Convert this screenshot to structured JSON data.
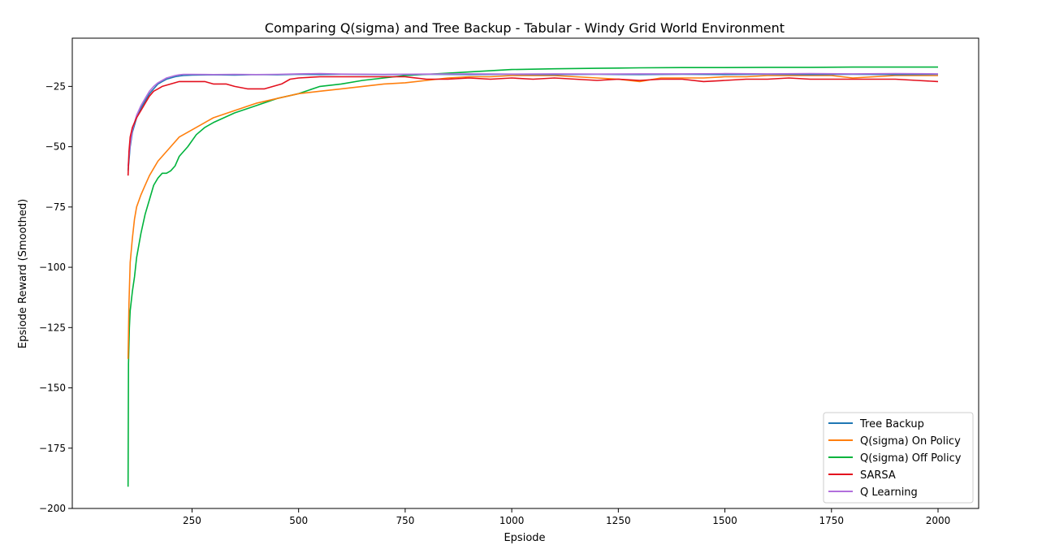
{
  "chart_data": {
    "type": "line",
    "title": "Comparing Q(sigma) and Tree Backup - Tabular - Windy Grid World Environment",
    "xlabel": "Epsiode",
    "ylabel": "Epsiode Reward (Smoothed)",
    "xlim": [
      0,
      2000
    ],
    "ylim": [
      -200,
      -5
    ],
    "xticks": [
      250,
      500,
      750,
      1000,
      1250,
      1500,
      1750,
      2000
    ],
    "yticks": [
      -200,
      -175,
      -150,
      -125,
      -100,
      -75,
      -50,
      -25
    ],
    "xtick_labels": [
      "250",
      "500",
      "750",
      "1000",
      "1250",
      "1500",
      "1750",
      "2000"
    ],
    "ytick_labels": [
      "−200",
      "−175",
      "−150",
      "−125",
      "−100",
      "−75",
      "−50",
      "−25"
    ],
    "grid": false,
    "legend_position": "bottom-right",
    "series": [
      {
        "name": "Tree Backup",
        "color": "#1f77b4",
        "x": [
          100,
          105,
          110,
          120,
          130,
          140,
          150,
          160,
          170,
          180,
          190,
          200,
          210,
          220,
          230,
          250,
          300,
          350,
          400,
          450,
          500,
          550,
          600,
          700,
          800,
          900,
          1000,
          1100,
          1200,
          1300,
          1400,
          1500,
          1600,
          1700,
          1800,
          1900,
          2000
        ],
        "y": [
          -60,
          -50,
          -44,
          -38,
          -34,
          -31,
          -28,
          -26,
          -24,
          -23,
          -22,
          -21.5,
          -21,
          -20.7,
          -20.5,
          -20.3,
          -20.2,
          -20.3,
          -20.1,
          -20.2,
          -20.0,
          -20.1,
          -20.0,
          -20.1,
          -20.0,
          -20.1,
          -20.0,
          -20.1,
          -20.0,
          -20.1,
          -20.0,
          -20.1,
          -20.0,
          -20.1,
          -20.0,
          -20.1,
          -20.0
        ]
      },
      {
        "name": "Q(sigma) On Policy",
        "color": "#ff7f0e",
        "x": [
          100,
          102,
          105,
          110,
          115,
          120,
          130,
          140,
          150,
          160,
          170,
          180,
          200,
          220,
          250,
          280,
          300,
          350,
          400,
          450,
          500,
          550,
          600,
          650,
          700,
          750,
          800,
          850,
          900,
          950,
          1000,
          1050,
          1100,
          1150,
          1200,
          1250,
          1300,
          1350,
          1400,
          1450,
          1500,
          1550,
          1600,
          1650,
          1700,
          1750,
          1800,
          1850,
          1900,
          1950,
          2000
        ],
        "y": [
          -138,
          -115,
          -98,
          -88,
          -80,
          -75,
          -70,
          -66,
          -62,
          -59,
          -56,
          -54,
          -50,
          -46,
          -43,
          -40,
          -38,
          -35,
          -32,
          -30,
          -28,
          -27,
          -26,
          -25,
          -24,
          -23.5,
          -22.5,
          -21.5,
          -21,
          -21,
          -20.5,
          -20.5,
          -20.5,
          -21,
          -21.5,
          -22,
          -23,
          -21.5,
          -21.5,
          -21.5,
          -21,
          -21,
          -20.5,
          -20.5,
          -20.5,
          -20.5,
          -21.5,
          -21,
          -20.5,
          -20.5,
          -20.5
        ]
      },
      {
        "name": "Q(sigma) Off Policy",
        "color": "#00b33c",
        "x": [
          100,
          101,
          103,
          105,
          110,
          115,
          120,
          130,
          140,
          150,
          160,
          170,
          180,
          190,
          200,
          210,
          220,
          240,
          260,
          280,
          300,
          350,
          400,
          450,
          500,
          550,
          600,
          650,
          700,
          750,
          800,
          850,
          900,
          950,
          1000,
          1100,
          1200,
          1300,
          1400,
          1500,
          1600,
          1700,
          1800,
          1900,
          2000
        ],
        "y": [
          -191,
          -140,
          -125,
          -118,
          -110,
          -104,
          -96,
          -86,
          -78,
          -72,
          -66,
          -63,
          -61,
          -61,
          -60,
          -58,
          -54,
          -50,
          -45,
          -42,
          -40,
          -36,
          -33,
          -30,
          -28,
          -25,
          -24,
          -22.5,
          -21.5,
          -20.5,
          -20,
          -19.5,
          -19,
          -18.5,
          -18,
          -17.7,
          -17.5,
          -17.3,
          -17.2,
          -17.2,
          -17.1,
          -17.1,
          -17.0,
          -17.0,
          -17.0
        ]
      },
      {
        "name": "SARSA",
        "color": "#e3101e",
        "x": [
          100,
          102,
          105,
          110,
          120,
          130,
          140,
          150,
          160,
          170,
          180,
          200,
          220,
          250,
          280,
          300,
          330,
          350,
          380,
          400,
          420,
          440,
          460,
          480,
          500,
          550,
          600,
          650,
          700,
          750,
          800,
          850,
          900,
          950,
          1000,
          1050,
          1100,
          1150,
          1200,
          1250,
          1300,
          1350,
          1400,
          1450,
          1500,
          1550,
          1600,
          1650,
          1700,
          1750,
          1800,
          1850,
          1900,
          1950,
          2000
        ],
        "y": [
          -62,
          -52,
          -46,
          -42,
          -38,
          -35,
          -32,
          -29,
          -27,
          -26,
          -25,
          -24,
          -23,
          -23,
          -23,
          -24,
          -24,
          -25,
          -26,
          -26,
          -26,
          -25,
          -24,
          -22,
          -21.5,
          -21,
          -21,
          -21,
          -21,
          -21,
          -22,
          -22,
          -21.5,
          -22,
          -21.5,
          -22,
          -21.5,
          -22,
          -22.5,
          -22,
          -22.5,
          -22,
          -22,
          -23,
          -22.5,
          -22,
          -22,
          -21.5,
          -22,
          -22,
          -22,
          -22,
          -22,
          -22.5,
          -23
        ]
      },
      {
        "name": "Q Learning",
        "color": "#b26fdc",
        "x": [
          100,
          105,
          110,
          120,
          130,
          140,
          150,
          160,
          170,
          180,
          190,
          200,
          210,
          220,
          230,
          250,
          300,
          350,
          400,
          450,
          500,
          550,
          600,
          700,
          800,
          900,
          1000,
          1100,
          1200,
          1300,
          1400,
          1500,
          1600,
          1700,
          1800,
          1900,
          2000
        ],
        "y": [
          -58,
          -49,
          -43,
          -37,
          -33,
          -30,
          -27,
          -25,
          -23.5,
          -22.5,
          -21.5,
          -21,
          -20.5,
          -20.2,
          -20.0,
          -20.0,
          -20.1,
          -20.0,
          -20.1,
          -20.0,
          -19.8,
          -19.7,
          -19.9,
          -20.0,
          -19.9,
          -19.8,
          -19.9,
          -19.8,
          -19.9,
          -19.8,
          -19.8,
          -19.7,
          -19.8,
          -19.7,
          -19.8,
          -19.7,
          -19.8
        ]
      }
    ]
  }
}
